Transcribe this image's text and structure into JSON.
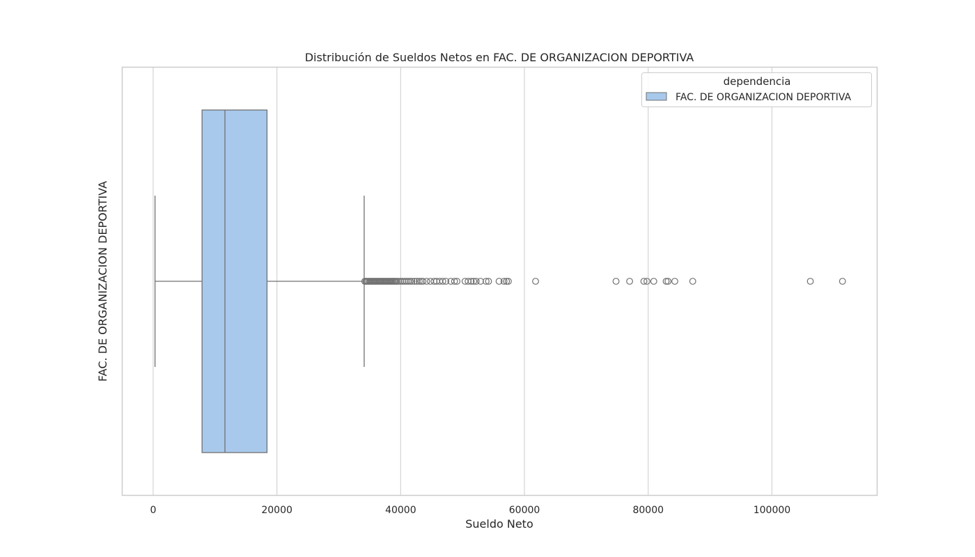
{
  "chart_data": {
    "type": "box",
    "orientation": "horizontal",
    "title": "Distribución de Sueldos Netos en FAC. DE ORGANIZACION DEPORTIVA",
    "xlabel": "Sueldo Neto",
    "ylabel": "FAC. DE ORGANIZACION DEPORTIVA",
    "xlim": [
      -5000,
      117000
    ],
    "xticks": [
      0,
      20000,
      40000,
      60000,
      80000,
      100000
    ],
    "xtick_labels": [
      "0",
      "20000",
      "40000",
      "60000",
      "80000",
      "100000"
    ],
    "grid": true,
    "legend": {
      "title": "dependencia",
      "placement": "top-right",
      "entries": [
        "FAC. DE ORGANIZACION DEPORTIVA"
      ]
    },
    "colors": {
      "box_fill": "#a9c9ec",
      "box_edge": "#707070",
      "grid": "#d4d4d4",
      "frame": "#cccccc"
    },
    "series": [
      {
        "name": "FAC. DE ORGANIZACION DEPORTIVA",
        "whisker_low": 300,
        "q1": 7900,
        "median": 11600,
        "q3": 18400,
        "whisker_high": 34100,
        "outliers": [
          34200,
          34400,
          34600,
          34800,
          35000,
          35200,
          35400,
          35600,
          35800,
          36000,
          36200,
          36400,
          36600,
          36800,
          37000,
          37200,
          37400,
          37600,
          37800,
          38000,
          38200,
          38400,
          38600,
          38800,
          39000,
          39200,
          39400,
          39700,
          40000,
          40300,
          40600,
          40900,
          41200,
          41500,
          41800,
          42200,
          42600,
          43000,
          43300,
          43600,
          44200,
          44800,
          45400,
          45800,
          46300,
          46800,
          47300,
          48100,
          48700,
          49100,
          50400,
          50900,
          51400,
          51800,
          52200,
          52900,
          53800,
          54200,
          55900,
          56700,
          57100,
          57400,
          61800,
          74800,
          77000,
          79300,
          79800,
          80900,
          82900,
          83200,
          84300,
          87200,
          106200,
          111400
        ]
      }
    ]
  }
}
